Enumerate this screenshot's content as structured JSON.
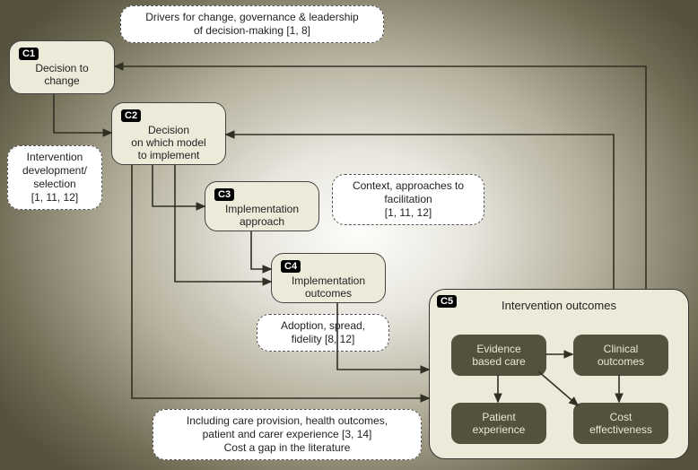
{
  "nodes": {
    "c1": {
      "tag": "C1",
      "label": "Decision to\nchange"
    },
    "c2": {
      "tag": "C2",
      "label": "Decision\non which model\nto implement"
    },
    "c3": {
      "tag": "C3",
      "label": "Implementation\napproach"
    },
    "c4": {
      "tag": "C4",
      "label": "Implementation\noutcomes"
    },
    "c5": {
      "tag": "C5",
      "title": "Intervention outcomes"
    },
    "s1": {
      "label": "Evidence\nbased care"
    },
    "s2": {
      "label": "Clinical\noutcomes"
    },
    "s3": {
      "label": "Patient\nexperience"
    },
    "s4": {
      "label": "Cost\neffectiveness"
    }
  },
  "callouts": {
    "a": "Drivers for change, governance & leadership\nof decision-making [1, 8]",
    "b": "Intervention\ndevelopment/\nselection\n[1, 11, 12]",
    "c": "Context, approaches to\nfacilitation\n[1, 11, 12]",
    "d": "Adoption, spread,\nfidelity [8, 12]",
    "e": "Including care provision, health outcomes,\npatient and carer experience [3, 14]\nCost a gap in the literature"
  },
  "colors": {
    "node": "#ecead9",
    "nodeBorder": "#444",
    "callout": "#ffffff",
    "sub": "#54513d"
  }
}
